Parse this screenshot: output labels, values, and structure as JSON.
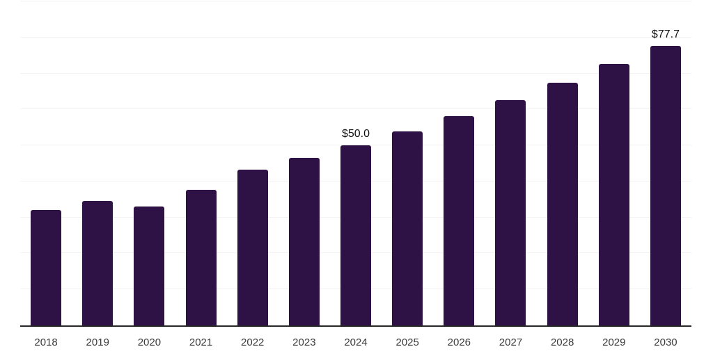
{
  "chart_data": {
    "type": "bar",
    "title": "",
    "xlabel": "",
    "ylabel": "",
    "categories": [
      "2018",
      "2019",
      "2020",
      "2021",
      "2022",
      "2023",
      "2024",
      "2025",
      "2026",
      "2027",
      "2028",
      "2029",
      "2030"
    ],
    "values": [
      32.1,
      34.6,
      33.0,
      37.7,
      43.3,
      46.6,
      50.0,
      53.9,
      58.1,
      62.6,
      67.4,
      72.7,
      77.7
    ],
    "data_labels": [
      "",
      "",
      "",
      "",
      "",
      "",
      "$50.0",
      "",
      "",
      "",
      "",
      "",
      "$77.7"
    ],
    "ylim": [
      0,
      90
    ],
    "grid_interval": 10,
    "grid": true,
    "legend": "none",
    "colors": {
      "bar": "#2f1245",
      "grid": "#f2f2f2",
      "axis": "#262626",
      "tick_label": "#3a3a3a",
      "data_label": "#111111",
      "background": "#ffffff"
    }
  }
}
